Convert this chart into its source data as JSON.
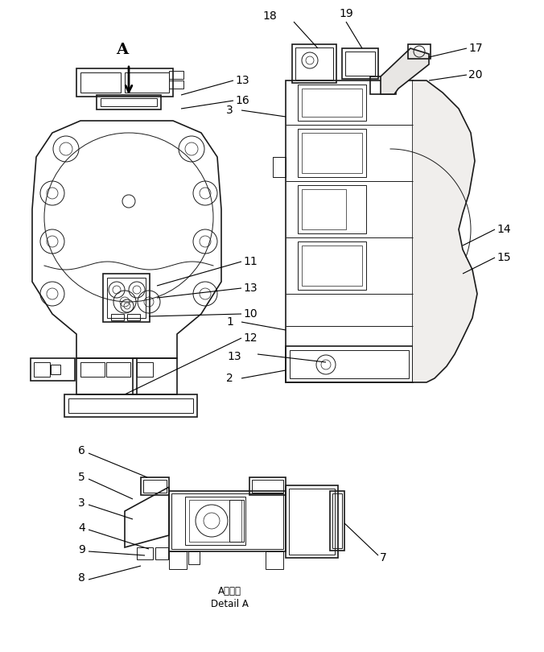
{
  "bg_color": "#ffffff",
  "lc": "#1a1a1a",
  "fig_width": 6.76,
  "fig_height": 8.1,
  "dpi": 100,
  "detail_line1": "A：詳細",
  "detail_line2": "Detail A",
  "fontsize": 10,
  "fontsize_small": 8.5
}
